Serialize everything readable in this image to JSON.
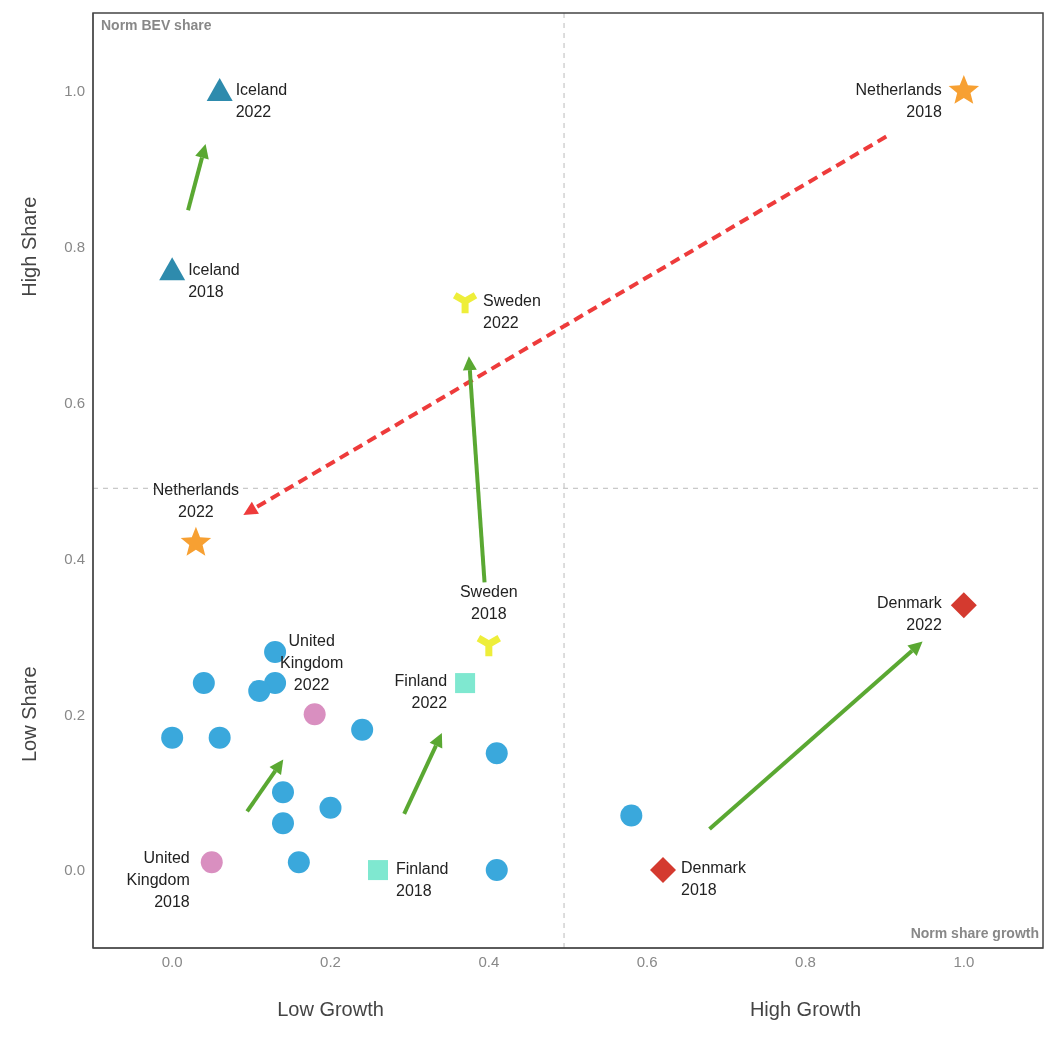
{
  "chart_data": {
    "type": "scatter",
    "xlabel": "Norm share growth",
    "ylabel": "Norm BEV share",
    "xlim": [
      -0.1,
      1.1
    ],
    "ylim": [
      -0.1,
      1.1
    ],
    "xticks": [
      {
        "value": 0,
        "label": "0.0"
      },
      {
        "value": 0.2,
        "label": "0.2"
      },
      {
        "value": 0.4,
        "label": "0.4"
      },
      {
        "value": 0.6,
        "label": "0.6"
      },
      {
        "value": 0.8,
        "label": "0.8"
      },
      {
        "value": 1,
        "label": "1.0"
      }
    ],
    "yticks": [
      {
        "value": 0,
        "label": "0.0"
      },
      {
        "value": 0.2,
        "label": "0.2"
      },
      {
        "value": 0.4,
        "label": "0.4"
      },
      {
        "value": 0.6,
        "label": "0.6"
      },
      {
        "value": 0.8,
        "label": "0.8"
      },
      {
        "value": 1,
        "label": "1.0"
      }
    ],
    "ref_lines": [
      {
        "axis": "x",
        "value": 0.495,
        "color": "#bbbbbb",
        "line_style": "dashed"
      },
      {
        "axis": "y",
        "value": 0.49,
        "color": "#bbbbbb",
        "line_style": "dashed"
      }
    ],
    "series": [
      {
        "color": "#3aa8dc",
        "marker": "circle",
        "x": [
          0.13,
          0.04,
          0.13,
          0.11,
          0.0,
          0.06,
          0.24,
          0.41,
          0.14,
          0.14,
          0.2,
          0.16,
          0.41,
          0.58
        ],
        "values": [
          0.28,
          0.24,
          0.24,
          0.23,
          0.17,
          0.17,
          0.18,
          0.15,
          0.1,
          0.06,
          0.08,
          0.01,
          0.0,
          0.07
        ]
      },
      {
        "color": "#2e8bad",
        "marker": "triangle",
        "x": [
          0.0,
          0.06
        ],
        "values": [
          0.77,
          1.0
        ]
      },
      {
        "color": "#f7a032",
        "marker": "star",
        "x": [
          1.0,
          0.03
        ],
        "values": [
          1.0,
          0.42
        ]
      },
      {
        "color": "#eeee3a",
        "type": "scatter",
        "x": [
          0.4,
          0.37
        ],
        "values": [
          0.29,
          0.73
        ]
      },
      {
        "color": "#7fe8d0",
        "marker": "square",
        "x": [
          0.26,
          0.37
        ],
        "values": [
          0.0,
          0.24
        ]
      },
      {
        "color": "#d43a2f",
        "marker": "diamond",
        "x": [
          0.62,
          1.0
        ],
        "values": [
          0.0,
          0.34
        ]
      },
      {
        "color": "#d98fc0",
        "marker": "circle",
        "x": [
          0.05,
          0.18
        ],
        "values": [
          0.01,
          0.2
        ]
      }
    ],
    "annotations": [
      "High Share",
      "Low Share",
      "Low Growth",
      "High Growth",
      {
        "text": "Iceland 2022",
        "x": 0.06,
        "y": 1.0
      },
      {
        "text": "Iceland 2018",
        "x": 0.0,
        "y": 0.77
      },
      {
        "text": "Netherlands 2018",
        "x": 1.0,
        "y": 1.0
      },
      {
        "text": "Netherlands 2022",
        "x": 0.03,
        "y": 0.42
      },
      {
        "text": "Sweden 2022",
        "x": 0.37,
        "y": 0.73
      },
      {
        "text": "Sweden 2018",
        "x": 0.4,
        "y": 0.29
      },
      {
        "text": "Finland 2022",
        "x": 0.37,
        "y": 0.24
      },
      {
        "text": "Finland 2018",
        "x": 0.26,
        "y": 0.0
      },
      {
        "text": "Denmark 2022",
        "x": 1.0,
        "y": 0.34
      },
      {
        "text": "Denmark 2018",
        "x": 0.62,
        "y": 0.0
      },
      {
        "text": "United Kingdom 2018",
        "x": 0.05,
        "y": 0.01
      },
      {
        "text": "United Kingdom 2022",
        "x": 0.18,
        "y": 0.2
      }
    ]
  }
}
